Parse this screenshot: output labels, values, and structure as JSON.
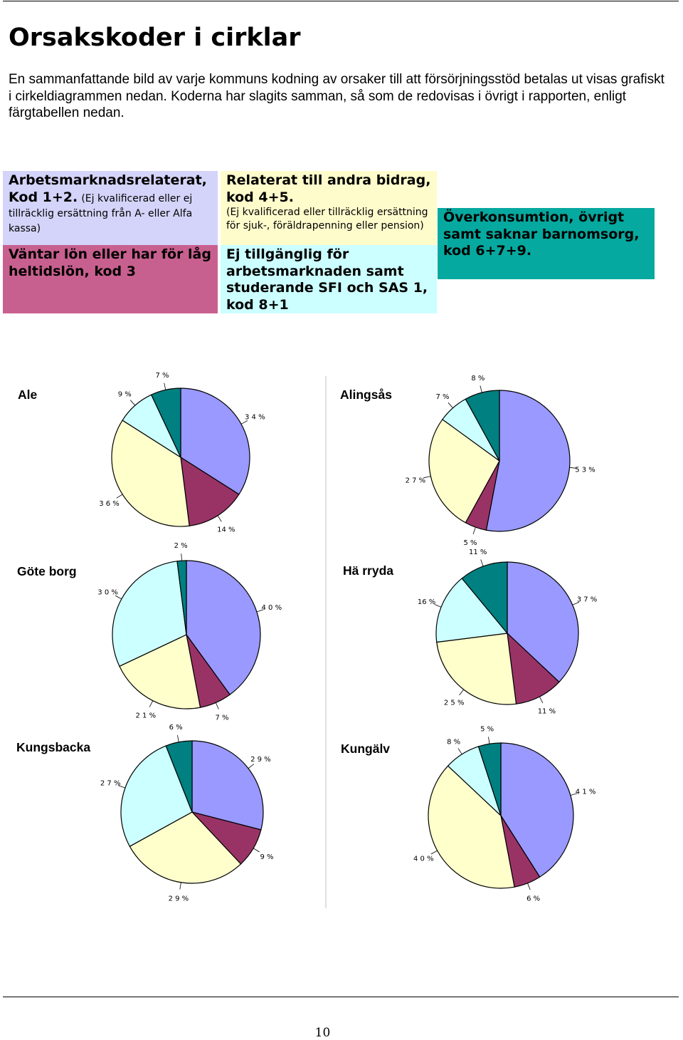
{
  "title": "Orsakskoder i cirklar",
  "intro": "En sammanfattande bild av varje kommuns kodning av orsaker till att försörjningsstöd betalas ut visas grafiskt i cirkeldiagrammen nedan. Koderna har slagits samman, så som de redovisas i övrigt i rapporten, enligt färgtabellen nedan.",
  "legend": {
    "arbetsmarknad": {
      "heading": "Arbetsmarknadsrelaterat, Kod 1+2.",
      "note": "(Ej kvalificerad eller ej tillräcklig ersättning från A- eller Alfa kassa)",
      "color": "#9999ff"
    },
    "lon": {
      "heading": "Väntar lön eller har för låg heltidslön, kod 3",
      "color": "#993366"
    },
    "bidrag": {
      "heading": "Relaterat till andra bidrag, kod 4+5.",
      "note": "(Ej kvalificerad eller tillräcklig ersättning för sjuk-, föräldrapenning eller pension)",
      "color": "#ffffcc"
    },
    "ej_tillganglig": {
      "heading": "Ej tillgänglig för arbetsmarknaden samt studerande SFI och SAS 1, kod 8+1",
      "color": "#ccffff"
    },
    "overkonsumtion": {
      "heading": "Överkonsumtion, övrigt samt saknar barnomsorg, kod 6+7+9.",
      "color": "#008080"
    }
  },
  "chart_data": [
    {
      "type": "pie",
      "title": "Ale",
      "categories": [
        "Kod 1+2",
        "Kod 3",
        "Kod 4+5",
        "Kod 8+1",
        "Kod 6+7+9"
      ],
      "values": [
        34,
        14,
        36,
        9,
        7
      ],
      "labels": [
        "3 4 %",
        "14 %",
        "3 6 %",
        "9 %",
        "7 %"
      ]
    },
    {
      "type": "pie",
      "title": "Alingsås",
      "categories": [
        "Kod 1+2",
        "Kod 3",
        "Kod 4+5",
        "Kod 8+1",
        "Kod 6+7+9"
      ],
      "values": [
        53,
        5,
        27,
        7,
        8
      ],
      "labels": [
        "5 3 %",
        "5 %",
        "2 7 %",
        "7 %",
        "8 %"
      ]
    },
    {
      "type": "pie",
      "title": "Göte borg",
      "categories": [
        "Kod 1+2",
        "Kod 3",
        "Kod 4+5",
        "Kod 8+1",
        "Kod 6+7+9"
      ],
      "values": [
        40,
        7,
        21,
        30,
        2
      ],
      "labels": [
        "4 0 %",
        "7 %",
        "2 1 %",
        "3 0 %",
        "2 %"
      ]
    },
    {
      "type": "pie",
      "title": "Hä rryda",
      "categories": [
        "Kod 1+2",
        "Kod 3",
        "Kod 4+5",
        "Kod 8+1",
        "Kod 6+7+9"
      ],
      "values": [
        37,
        11,
        25,
        16,
        11
      ],
      "labels": [
        "3 7 %",
        "11 %",
        "2 5 %",
        "16 %",
        "11 %"
      ]
    },
    {
      "type": "pie",
      "title": "Kungsbacka",
      "categories": [
        "Kod 1+2",
        "Kod 3",
        "Kod 4+5",
        "Kod 8+1",
        "Kod 6+7+9"
      ],
      "values": [
        29,
        9,
        29,
        27,
        6
      ],
      "labels": [
        "2 9 %",
        "9 %",
        "2 9 %",
        "2 7 %",
        "6 %"
      ]
    },
    {
      "type": "pie",
      "title": "Kungälv",
      "categories": [
        "Kod 1+2",
        "Kod 3",
        "Kod 4+5",
        "Kod 8+1",
        "Kod 6+7+9"
      ],
      "values": [
        41,
        6,
        40,
        8,
        5
      ],
      "labels": [
        "4 1 %",
        "6 %",
        "4 0 %",
        "8 %",
        "5 %"
      ]
    }
  ],
  "page_number": "10"
}
